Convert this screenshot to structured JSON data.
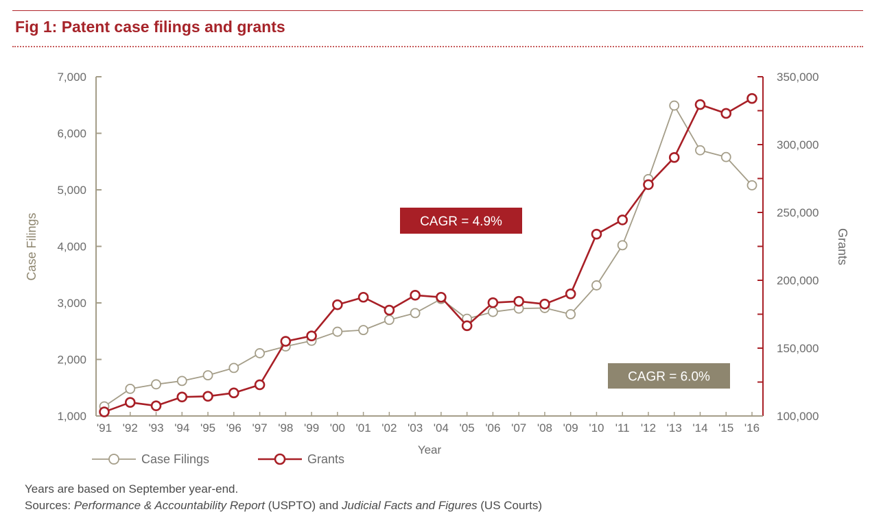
{
  "header": {
    "title": "Fig 1: Patent case filings and grants"
  },
  "chart_data": {
    "type": "line",
    "title": "Fig 1: Patent case filings and grants",
    "xlabel": "Year",
    "ylabel_left": "Case Filings",
    "ylabel_right": "Grants",
    "categories": [
      "'91",
      "'92",
      "'93",
      "'94",
      "'95",
      "'96",
      "'97",
      "'98",
      "'99",
      "'00",
      "'01",
      "'02",
      "'03",
      "'04",
      "'05",
      "'06",
      "'07",
      "'08",
      "'09",
      "'10",
      "'11",
      "'12",
      "'13",
      "'14",
      "'15",
      "'16"
    ],
    "y_left": {
      "ylim": [
        1000,
        7000
      ],
      "ticks": [
        1000,
        2000,
        3000,
        4000,
        5000,
        6000,
        7000
      ],
      "tick_labels": [
        "1,000",
        "2,000",
        "3,000",
        "4,000",
        "5,000",
        "6,000",
        "7,000"
      ]
    },
    "y_right": {
      "ylim": [
        100000,
        350000
      ],
      "ticks": [
        100000,
        125000,
        150000,
        175000,
        200000,
        225000,
        250000,
        275000,
        300000,
        325000,
        350000
      ],
      "tick_labels": [
        "100,000",
        "",
        "150,000",
        "",
        "200,000",
        "",
        "250,000",
        "",
        "300,000",
        "",
        "350,000"
      ]
    },
    "series": [
      {
        "name": "Case Filings",
        "axis": "left",
        "color": "#a49d88",
        "values": [
          1170,
          1480,
          1560,
          1620,
          1720,
          1850,
          2110,
          2230,
          2330,
          2490,
          2520,
          2700,
          2820,
          3070,
          2720,
          2840,
          2900,
          2910,
          2800,
          3310,
          4020,
          5190,
          6490,
          5700,
          5580,
          5080
        ]
      },
      {
        "name": "Grants",
        "axis": "right",
        "color": "#a81f26",
        "values": [
          103000,
          110000,
          107500,
          114000,
          114500,
          117000,
          123000,
          155000,
          159000,
          182000,
          187500,
          178000,
          189000,
          187500,
          166500,
          183500,
          184500,
          182500,
          190000,
          234000,
          244500,
          270500,
          290500,
          329500,
          323000,
          334000
        ]
      }
    ],
    "annotations": [
      {
        "text": "CAGR = 4.9%",
        "series": "Grants",
        "bg": "#a81f26"
      },
      {
        "text": "CAGR = 6.0%",
        "series": "Case Filings",
        "bg": "#8e866f"
      }
    ],
    "legend": {
      "placement": "bottom-left"
    },
    "grid": false
  },
  "notes": {
    "line1": "Years are based on September year-end.",
    "sources_prefix": "Sources: ",
    "report1": "Performance & Accountability Report",
    "report1_src": " (USPTO) and ",
    "report2": "Judicial Facts and Figures",
    "report2_src": " (US Courts)"
  }
}
